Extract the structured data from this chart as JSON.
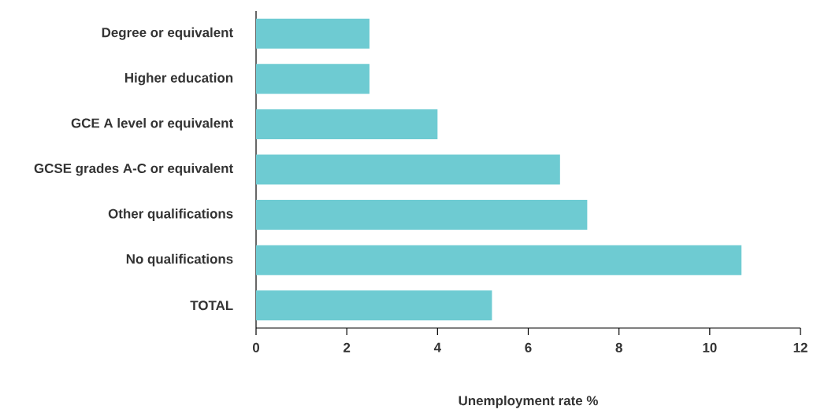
{
  "chart_data": {
    "type": "bar",
    "orientation": "horizontal",
    "xlabel": "Unemployment rate %",
    "categories": [
      "Degree or equivalent",
      "Higher education",
      "GCE A level or equivalent",
      "GCSE grades A-C or equivalent",
      "Other qualifications",
      "No qualifications",
      "TOTAL"
    ],
    "values": [
      2.5,
      2.5,
      4.0,
      6.7,
      7.3,
      10.7,
      5.2
    ],
    "color": "#6ecbd2",
    "xlim": [
      0,
      12
    ],
    "xticks": [
      0,
      2,
      4,
      6,
      8,
      10,
      12
    ]
  }
}
